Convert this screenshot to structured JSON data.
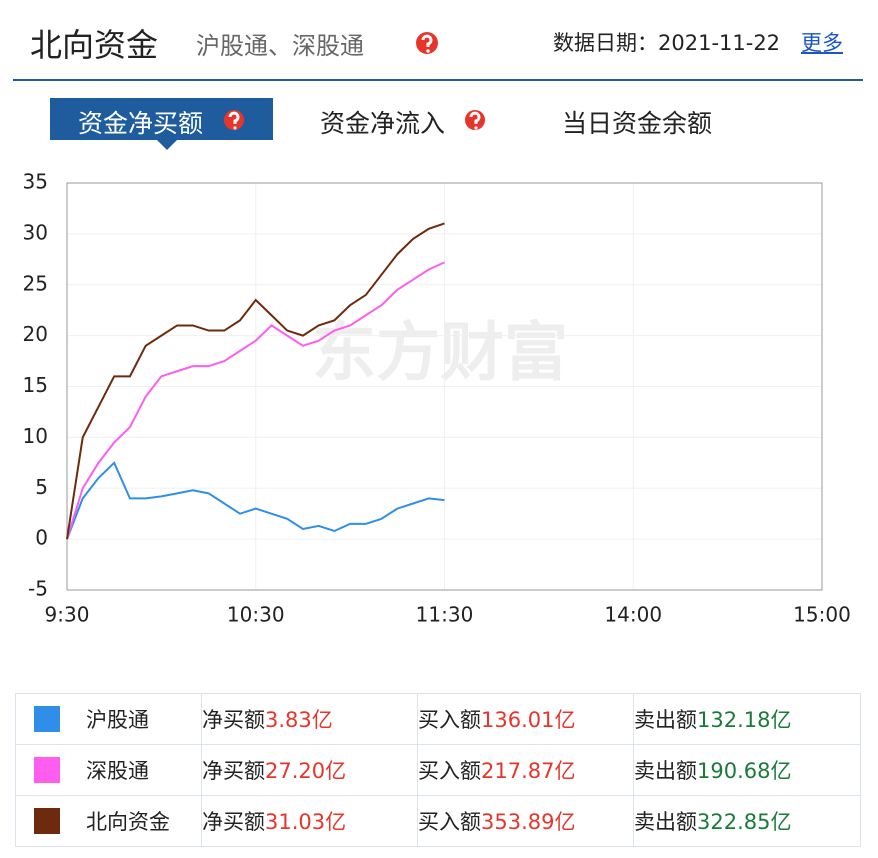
{
  "header": {
    "title": "北向资金",
    "subtitle": "沪股通、深股通",
    "date_label": "数据日期：2021-11-22",
    "more_link": "更多"
  },
  "tabs": [
    "资金净买额",
    "资金净流入",
    "当日资金余额"
  ],
  "chart_data": {
    "type": "line",
    "watermark": "东方财富",
    "x": [
      0,
      5,
      10,
      15,
      20,
      25,
      30,
      35,
      40,
      45,
      50,
      55,
      60,
      65,
      70,
      75,
      80,
      85,
      90,
      95,
      100,
      105,
      110,
      115,
      120
    ],
    "xlim": [
      0,
      240
    ],
    "xticks": [
      {
        "value": 0,
        "label": "9:30"
      },
      {
        "value": 60,
        "label": "10:30"
      },
      {
        "value": 120,
        "label": "11:30"
      },
      {
        "value": 180,
        "label": "14:00"
      },
      {
        "value": 240,
        "label": "15:00"
      }
    ],
    "ylim": [
      -5,
      35
    ],
    "yticks": [
      -5,
      0,
      5,
      10,
      15,
      20,
      25,
      30,
      35
    ],
    "grid": true,
    "series": [
      {
        "name": "沪股通",
        "color": "#2f8fe8",
        "values": [
          0,
          4,
          6,
          7.5,
          4,
          4,
          4.2,
          4.5,
          4.8,
          4.5,
          3.5,
          2.5,
          3,
          2.5,
          2,
          1,
          1.3,
          0.8,
          1.5,
          1.5,
          2,
          3,
          3.5,
          4,
          3.83
        ]
      },
      {
        "name": "深股通",
        "color": "#ff5cf0",
        "values": [
          0,
          5,
          7.5,
          9.5,
          11,
          14,
          16,
          16.5,
          17,
          17,
          17.5,
          18.5,
          19.5,
          21,
          20,
          19,
          19.5,
          20.5,
          21,
          22,
          23,
          24.5,
          25.5,
          26.5,
          27.2
        ]
      },
      {
        "name": "北向资金",
        "color": "#6e2a0c",
        "values": [
          0,
          10,
          13,
          16,
          16,
          19,
          20,
          21,
          21,
          20.5,
          20.5,
          21.5,
          23.5,
          22,
          20.5,
          20,
          21,
          21.5,
          23,
          24,
          26,
          28,
          29.5,
          30.5,
          31.03
        ]
      }
    ]
  },
  "table": {
    "rows": [
      [
        "沪股通",
        "净买额",
        "3.83亿",
        "买入额",
        "136.01亿",
        "卖出额",
        "132.18亿"
      ],
      [
        "深股通",
        "净买额",
        "27.20亿",
        "买入额",
        "217.87亿",
        "卖出额",
        "190.68亿"
      ],
      [
        "北向资金",
        "净买额",
        "31.03亿",
        "买入额",
        "353.89亿",
        "卖出额",
        "322.85亿"
      ]
    ]
  }
}
